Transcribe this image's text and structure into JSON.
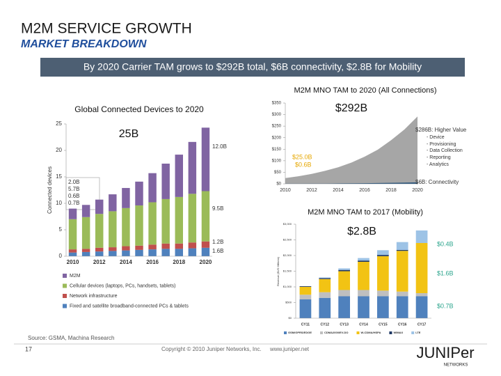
{
  "slide": {
    "title": "M2M SERVICE GROWTH",
    "subtitle": "MARKET BREAKDOWN",
    "banner": "By 2020 Carrier TAM grows to $292B total, $6B connectivity, $2.8B for Mobility",
    "source": "Source: GSMA, Machina Research",
    "page_number": "17",
    "copyright": "Copyright © 2010 Juniper Networks, Inc.",
    "url": "www.juniper.net",
    "logo": "JUNIPer",
    "logo_sub": "NETWORKS"
  },
  "chart_data": [
    {
      "type": "bar",
      "stacked": true,
      "title": "Global Connected Devices to 2020",
      "y_label": "Connected devices",
      "categories": [
        "2010",
        null,
        "2012",
        null,
        "2014",
        null,
        "2016",
        null,
        "2018",
        null,
        "2020"
      ],
      "series": [
        {
          "name": "Fixed and satellite broadband-connected PCs & tablets",
          "color": "#4f81bd",
          "values": [
            0.7,
            0.8,
            0.9,
            1.0,
            1.1,
            1.2,
            1.3,
            1.4,
            1.4,
            1.5,
            1.6
          ]
        },
        {
          "name": "Network infrastructure",
          "color": "#c0504d",
          "values": [
            0.6,
            0.6,
            0.7,
            0.7,
            0.8,
            0.8,
            0.9,
            1.0,
            1.0,
            1.1,
            1.2
          ]
        },
        {
          "name": "Cellular devices (laptops, PCs, handsets, tablets)",
          "color": "#9bbb59",
          "values": [
            5.7,
            6.0,
            6.4,
            6.8,
            7.2,
            7.6,
            8.0,
            8.4,
            8.8,
            9.2,
            9.5
          ]
        },
        {
          "name": "M2M",
          "color": "#8064a2",
          "values": [
            2.0,
            2.3,
            2.7,
            3.2,
            3.8,
            4.5,
            5.5,
            6.7,
            8.0,
            9.8,
            12.0
          ]
        }
      ],
      "ylim": [
        0,
        25
      ],
      "yticks": [
        0,
        5,
        10,
        15,
        20,
        25
      ],
      "grid": false,
      "annotations": [
        "25B",
        "12.0B",
        "9.5B",
        "1.2B",
        "1.6B",
        "2.0B",
        "5.7B",
        "0.6B",
        "0.7B"
      ]
    },
    {
      "type": "area",
      "stacked": true,
      "title": "M2M MNO TAM to 2020 (All Connections)",
      "x": [
        2010,
        2011,
        2012,
        2013,
        2014,
        2015,
        2016,
        2017,
        2018,
        2019,
        2020
      ],
      "xlim": [
        2010,
        2020
      ],
      "xticks": [
        2010,
        2012,
        2014,
        2016,
        2018,
        2020
      ],
      "series": [
        {
          "color": "#1f4e79",
          "values": [
            0.6,
            0.8,
            1.0,
            1.3,
            1.7,
            2.1,
            2.7,
            3.3,
            4.1,
            5.0,
            6.0
          ]
        },
        {
          "color": "#a6a6a6",
          "values": [
            24.4,
            32,
            42,
            55,
            70,
            90,
            115,
            145,
            185,
            230,
            286
          ]
        }
      ],
      "ylim": [
        0,
        350
      ],
      "yticks": [
        {
          "value": 0,
          "label": "$0"
        },
        {
          "value": 50,
          "label": "$50"
        },
        {
          "value": 100,
          "label": "$100"
        },
        {
          "value": 150,
          "label": "$150"
        },
        {
          "value": 200,
          "label": "$200"
        },
        {
          "value": 250,
          "label": "$250"
        },
        {
          "value": 300,
          "label": "$300"
        },
        {
          "value": 350,
          "label": "$350"
        }
      ],
      "grid": false,
      "annotations": [
        "$292B",
        "$286B: Higher Value",
        "- Device",
        "- Provisioning",
        "- Data Collection",
        "- Reporting",
        "- Analytics",
        "$25.0B",
        "$0.6B",
        "$6B: Connectivity"
      ]
    },
    {
      "type": "bar",
      "stacked": true,
      "title": "M2M MNO TAM to 2017 (Mobility)",
      "y_label": "Revenue ($US Millions)",
      "categories": [
        "CY11",
        "CY12",
        "CY13",
        "CY14",
        "CY15",
        "CY16",
        "CY17"
      ],
      "series": [
        {
          "name": "GSM/GPRS/EDGE",
          "color": "#4f81bd",
          "values": [
            600,
            650,
            700,
            700,
            700,
            700,
            700
          ]
        },
        {
          "name": "CDMA2000/EV-DO",
          "color": "#bfbfbf",
          "values": [
            150,
            180,
            200,
            200,
            180,
            150,
            100
          ]
        },
        {
          "name": "W-CDMA/HSPA",
          "color": "#f2c314",
          "values": [
            250,
            420,
            600,
            900,
            1100,
            1300,
            1600
          ]
        },
        {
          "name": "WIMAX",
          "color": "#1f3864",
          "values": [
            20,
            30,
            40,
            40,
            40,
            30,
            0
          ]
        },
        {
          "name": "LTE",
          "color": "#9dc3e6",
          "values": [
            0,
            20,
            50,
            80,
            150,
            250,
            400
          ]
        }
      ],
      "ylim": [
        0,
        3000
      ],
      "yticks": [
        {
          "value": 0,
          "label": "$0"
        },
        {
          "value": 500,
          "label": "$500"
        },
        {
          "value": 1000,
          "label": "$1,000"
        },
        {
          "value": 1500,
          "label": "$1,500"
        },
        {
          "value": 2000,
          "label": "$2,000"
        },
        {
          "value": 2500,
          "label": "$2,500"
        },
        {
          "value": 3000,
          "label": "$3,000"
        }
      ],
      "grid": false,
      "annotations": [
        "$2.8B",
        "$0.4B",
        "$1.6B",
        "$0.7B"
      ]
    }
  ]
}
